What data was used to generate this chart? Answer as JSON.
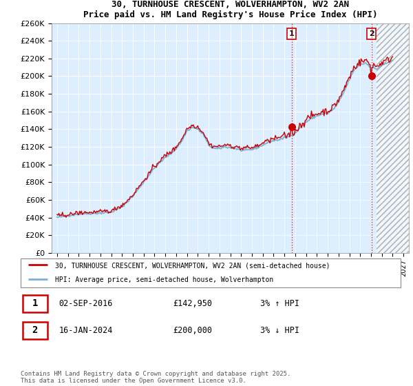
{
  "title": "30, TURNHOUSE CRESCENT, WOLVERHAMPTON, WV2 2AN",
  "subtitle": "Price paid vs. HM Land Registry's House Price Index (HPI)",
  "legend_line1": "30, TURNHOUSE CRESCENT, WOLVERHAMPTON, WV2 2AN (semi-detached house)",
  "legend_line2": "HPI: Average price, semi-detached house, Wolverhampton",
  "annotation1": {
    "label": "1",
    "date": "02-SEP-2016",
    "price": "£142,950",
    "hpi": "3% ↑ HPI",
    "year": 2016.67
  },
  "annotation2": {
    "label": "2",
    "date": "16-JAN-2024",
    "price": "£200,000",
    "hpi": "3% ↓ HPI",
    "year": 2024.04
  },
  "footer": "Contains HM Land Registry data © Crown copyright and database right 2025.\nThis data is licensed under the Open Government Licence v3.0.",
  "ylim": [
    0,
    260000
  ],
  "yticks": [
    0,
    20000,
    40000,
    60000,
    80000,
    100000,
    120000,
    140000,
    160000,
    180000,
    200000,
    220000,
    240000,
    260000
  ],
  "xlim": [
    1994.5,
    2027.5
  ],
  "line_color_red": "#cc0000",
  "line_color_blue": "#7ab0d4",
  "background_color": "#ddeeff",
  "fill_color": "#cce0f5",
  "grid_color": "#ffffff",
  "vline_color": "#cc0000",
  "sale1_year": 2016.67,
  "sale1_price": 142950,
  "sale2_year": 2024.04,
  "sale2_price": 200000,
  "hatch_start": 2024.5,
  "hatch_end": 2027.5
}
